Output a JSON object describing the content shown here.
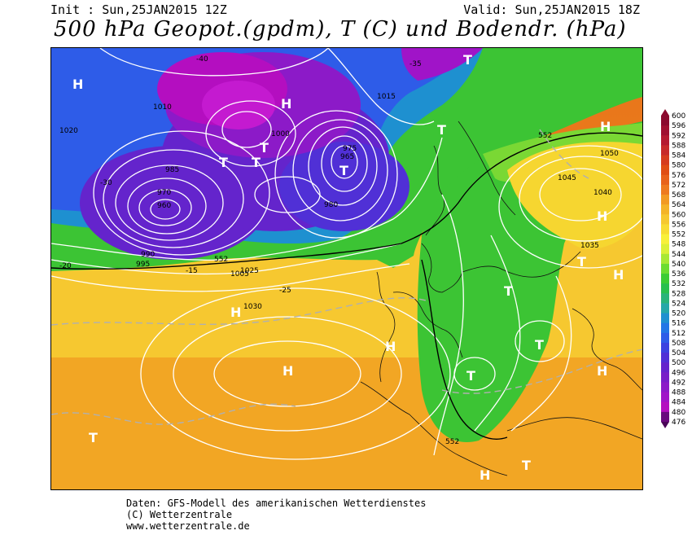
{
  "header": {
    "init": "Init : Sun,25JAN2015 12Z",
    "valid": "Valid: Sun,25JAN2015 18Z",
    "title": "500 hPa Geopot.(gpdm), T (C) und Bodendr. (hPa)"
  },
  "footer": {
    "line1": "Daten: GFS-Modell des amerikanischen Wetterdienstes",
    "line2": "(C) Wetterzentrale",
    "line3": "www.wetterzentrale.de"
  },
  "legend": {
    "values": [
      "600",
      "596",
      "592",
      "588",
      "584",
      "580",
      "576",
      "572",
      "568",
      "564",
      "560",
      "556",
      "552",
      "548",
      "544",
      "540",
      "536",
      "532",
      "528",
      "524",
      "520",
      "516",
      "512",
      "508",
      "504",
      "500",
      "496",
      "492",
      "488",
      "484",
      "480",
      "476"
    ],
    "colors": [
      "#8b0a2e",
      "#a01030",
      "#b51a30",
      "#c72a2a",
      "#d63c1e",
      "#e04e14",
      "#e8621a",
      "#ee7a1e",
      "#f29a22",
      "#f4b428",
      "#f6c830",
      "#f8dc34",
      "#f8f03a",
      "#dcf038",
      "#a8e834",
      "#6cdc30",
      "#3ccc34",
      "#28c04e",
      "#28b47a",
      "#24a8a8",
      "#1e90d0",
      "#2276e6",
      "#2e5ce8",
      "#3c42e0",
      "#5030d6",
      "#6424cc",
      "#781ec8",
      "#8c1ac8",
      "#a014c8",
      "#b40ec0",
      "#6a0a7e",
      "#4a0658"
    ]
  },
  "map": {
    "pressure_highs": [
      "H",
      "H",
      "H",
      "H",
      "H",
      "H",
      "H",
      "H",
      "H",
      "H"
    ],
    "pressure_lows": [
      "T",
      "T",
      "T",
      "T",
      "T",
      "T",
      "T",
      "T",
      "T",
      "T",
      "T",
      "T"
    ],
    "isobar_labels": [
      "1020",
      "1015",
      "1010",
      "1005",
      "1000",
      "995",
      "990",
      "985",
      "980",
      "975",
      "970",
      "965",
      "960",
      "1025",
      "1030",
      "1035",
      "1040",
      "1045",
      "1050"
    ],
    "temperature_labels": [
      "-40",
      "-35",
      "-30",
      "-25",
      "-20",
      "-15"
    ],
    "geopot_labels": [
      "552"
    ]
  }
}
